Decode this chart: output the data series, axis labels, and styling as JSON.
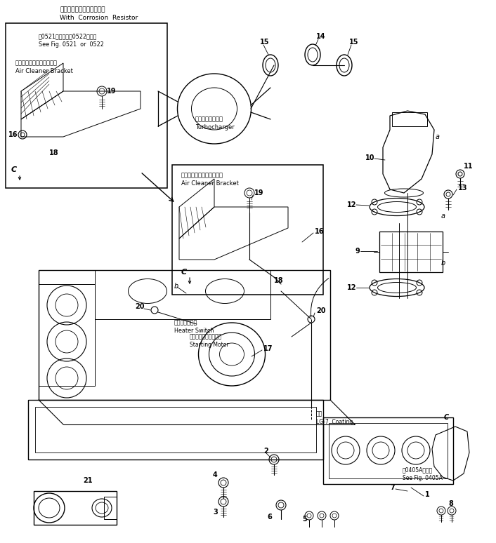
{
  "fig_width": 7.06,
  "fig_height": 7.74,
  "dpi": 100,
  "bg_color": "#ffffff",
  "annotations": {
    "top_jp": "コロージョンレジスタ付き",
    "top_en": "With  Corrosion  Resistor",
    "box1_ref_jp": "第0521図または第0522図参照",
    "box1_ref_en": "See Fig. 0521  or  0522",
    "bracket_jp": "エアークリーナブラケット",
    "bracket_en": "Air Cleaner Bracket",
    "turbo_jp": "ターボチャージャ",
    "turbo_en": "Turbocharger",
    "heater_jp": "ヒータスイッチ",
    "heater_en": "Heater Switch",
    "starting_jp": "スターティングモータ",
    "starting_en": "Starting Motor",
    "coating_jp": "塗布",
    "coating_en": "LG-7  Coating",
    "fig_ref_jp": "第0405A図参照",
    "fig_ref_en": "See Fig. 0405A"
  }
}
